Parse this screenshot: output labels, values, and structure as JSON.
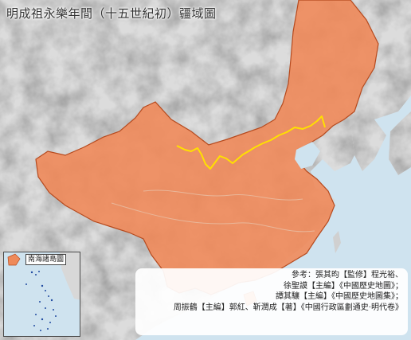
{
  "title": "明成祖永樂年間（十五世紀初）疆域圖",
  "inset": {
    "label": "南海諸島圖"
  },
  "sources": {
    "lines": [
      "參考：張其昀【監修】程光裕、",
      "徐聖謨【主編】《中國歷史地圖》；",
      "譚其驤【主編】《中國歷史地圖集》；",
      "周振鶴【主編】郭紅、靳潤成【著】《中國行政區劃通史·明代卷》"
    ]
  },
  "colors": {
    "territory": "#ef8a5a",
    "territory_border": "#b64a1e",
    "great_wall": "#ffe000",
    "sea": "#cfe3ef",
    "land": "#d9d9d9"
  },
  "icons": [
    "compass-free-map",
    "island-markers"
  ]
}
